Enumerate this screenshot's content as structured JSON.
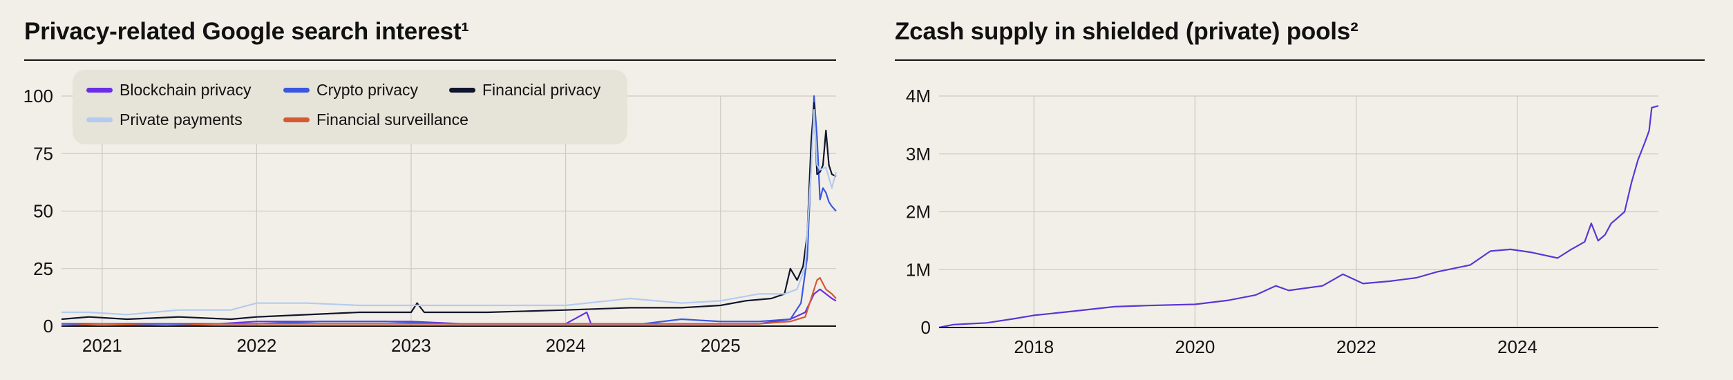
{
  "chart_data": [
    {
      "type": "line",
      "title": "Privacy-related Google search interest¹",
      "xlabel": "",
      "ylabel": "",
      "x_range": [
        "2020-09-27",
        "2025-10-01"
      ],
      "ylim": [
        0,
        100
      ],
      "yticks": [
        "0",
        "25",
        "50",
        "75",
        "100"
      ],
      "xticks": [
        "2021",
        "2022",
        "2023",
        "2024",
        "2025"
      ],
      "grid": true,
      "legend": "top-left",
      "series": [
        {
          "name": "Blockchain privacy",
          "color": "#6a2ee8",
          "points": [
            [
              "2020-09-27",
              1
            ],
            [
              "2021-01-01",
              1
            ],
            [
              "2021-06-01",
              1
            ],
            [
              "2021-10-01",
              1
            ],
            [
              "2022-01-01",
              2
            ],
            [
              "2022-04-01",
              2
            ],
            [
              "2022-09-01",
              2
            ],
            [
              "2023-01-01",
              2
            ],
            [
              "2023-05-01",
              1
            ],
            [
              "2023-09-01",
              1
            ],
            [
              "2024-01-01",
              1
            ],
            [
              "2024-02-20",
              6
            ],
            [
              "2024-03-01",
              1
            ],
            [
              "2024-08-01",
              1
            ],
            [
              "2025-01-01",
              1
            ],
            [
              "2025-04-01",
              1
            ],
            [
              "2025-06-15",
              3
            ],
            [
              "2025-07-20",
              6
            ],
            [
              "2025-08-10",
              14
            ],
            [
              "2025-08-24",
              16
            ],
            [
              "2025-09-07",
              14
            ],
            [
              "2025-09-21",
              12
            ],
            [
              "2025-10-01",
              11
            ]
          ]
        },
        {
          "name": "Crypto privacy",
          "color": "#3a57e0",
          "points": [
            [
              "2020-09-27",
              1
            ],
            [
              "2021-01-01",
              1
            ],
            [
              "2021-06-01",
              1
            ],
            [
              "2021-10-01",
              1
            ],
            [
              "2022-01-01",
              1
            ],
            [
              "2022-06-01",
              2
            ],
            [
              "2022-11-01",
              2
            ],
            [
              "2023-04-01",
              1
            ],
            [
              "2023-09-01",
              1
            ],
            [
              "2024-02-01",
              1
            ],
            [
              "2024-07-01",
              1
            ],
            [
              "2024-10-01",
              3
            ],
            [
              "2025-01-01",
              2
            ],
            [
              "2025-04-01",
              2
            ],
            [
              "2025-06-15",
              3
            ],
            [
              "2025-07-10",
              10
            ],
            [
              "2025-07-25",
              30
            ],
            [
              "2025-08-03",
              70
            ],
            [
              "2025-08-10",
              100
            ],
            [
              "2025-08-17",
              82
            ],
            [
              "2025-08-24",
              55
            ],
            [
              "2025-08-31",
              60
            ],
            [
              "2025-09-07",
              58
            ],
            [
              "2025-09-14",
              54
            ],
            [
              "2025-09-21",
              52
            ],
            [
              "2025-10-01",
              50
            ]
          ]
        },
        {
          "name": "Financial privacy",
          "color": "#10152e",
          "points": [
            [
              "2020-09-27",
              3
            ],
            [
              "2020-12-01",
              4
            ],
            [
              "2021-03-01",
              3
            ],
            [
              "2021-07-01",
              4
            ],
            [
              "2021-11-01",
              3
            ],
            [
              "2022-01-01",
              4
            ],
            [
              "2022-05-01",
              5
            ],
            [
              "2022-09-01",
              6
            ],
            [
              "2023-01-01",
              6
            ],
            [
              "2023-01-15",
              10
            ],
            [
              "2023-02-01",
              6
            ],
            [
              "2023-07-01",
              6
            ],
            [
              "2024-01-01",
              7
            ],
            [
              "2024-06-01",
              8
            ],
            [
              "2024-10-01",
              8
            ],
            [
              "2025-01-01",
              9
            ],
            [
              "2025-03-01",
              11
            ],
            [
              "2025-05-01",
              12
            ],
            [
              "2025-06-01",
              14
            ],
            [
              "2025-06-15",
              25
            ],
            [
              "2025-07-01",
              20
            ],
            [
              "2025-07-15",
              26
            ],
            [
              "2025-07-25",
              40
            ],
            [
              "2025-08-03",
              80
            ],
            [
              "2025-08-10",
              97
            ],
            [
              "2025-08-17",
              66
            ],
            [
              "2025-08-24",
              67
            ],
            [
              "2025-08-31",
              70
            ],
            [
              "2025-09-07",
              85
            ],
            [
              "2025-09-14",
              70
            ],
            [
              "2025-09-21",
              66
            ],
            [
              "2025-10-01",
              65
            ]
          ]
        },
        {
          "name": "Private payments",
          "color": "#b3cbf0",
          "points": [
            [
              "2020-09-27",
              6
            ],
            [
              "2020-12-01",
              6
            ],
            [
              "2021-03-01",
              5
            ],
            [
              "2021-07-01",
              7
            ],
            [
              "2021-11-01",
              7
            ],
            [
              "2022-01-01",
              10
            ],
            [
              "2022-05-01",
              10
            ],
            [
              "2022-09-01",
              9
            ],
            [
              "2023-01-01",
              9
            ],
            [
              "2023-06-01",
              9
            ],
            [
              "2024-01-01",
              9
            ],
            [
              "2024-06-01",
              12
            ],
            [
              "2024-10-01",
              10
            ],
            [
              "2025-01-01",
              11
            ],
            [
              "2025-04-01",
              14
            ],
            [
              "2025-06-01",
              14
            ],
            [
              "2025-07-01",
              16
            ],
            [
              "2025-07-20",
              26
            ],
            [
              "2025-08-03",
              68
            ],
            [
              "2025-08-10",
              94
            ],
            [
              "2025-08-17",
              70
            ],
            [
              "2025-08-24",
              68
            ],
            [
              "2025-09-07",
              69
            ],
            [
              "2025-09-21",
              60
            ],
            [
              "2025-10-01",
              67
            ]
          ]
        },
        {
          "name": "Financial surveillance",
          "color": "#d35a32",
          "points": [
            [
              "2020-09-27",
              0
            ],
            [
              "2021-01-01",
              1
            ],
            [
              "2021-06-01",
              0
            ],
            [
              "2021-10-01",
              1
            ],
            [
              "2022-01-01",
              1
            ],
            [
              "2022-06-01",
              1
            ],
            [
              "2022-11-01",
              1
            ],
            [
              "2023-04-01",
              1
            ],
            [
              "2023-09-01",
              1
            ],
            [
              "2024-02-01",
              1
            ],
            [
              "2024-07-01",
              1
            ],
            [
              "2024-12-01",
              1
            ],
            [
              "2025-04-01",
              1
            ],
            [
              "2025-06-15",
              2
            ],
            [
              "2025-07-20",
              4
            ],
            [
              "2025-08-03",
              12
            ],
            [
              "2025-08-17",
              20
            ],
            [
              "2025-08-24",
              21
            ],
            [
              "2025-09-07",
              16
            ],
            [
              "2025-09-21",
              14
            ],
            [
              "2025-10-01",
              12
            ]
          ]
        }
      ]
    },
    {
      "type": "line",
      "title": "Zcash supply in shielded (private) pools²",
      "xlabel": "",
      "ylabel": "",
      "x_range": [
        "2016-10-28",
        "2025-10-01"
      ],
      "ylim": [
        0,
        4000000
      ],
      "yticks": [
        "0",
        "1M",
        "2M",
        "3M",
        "4M"
      ],
      "xticks": [
        "2018",
        "2020",
        "2022",
        "2024"
      ],
      "grid": true,
      "series": [
        {
          "name": "",
          "color": "#5b35d5",
          "points": [
            [
              "2016-10-28",
              0
            ],
            [
              "2017-01-01",
              50000
            ],
            [
              "2017-06-01",
              80000
            ],
            [
              "2017-10-01",
              150000
            ],
            [
              "2018-01-01",
              210000
            ],
            [
              "2018-06-01",
              270000
            ],
            [
              "2019-01-01",
              360000
            ],
            [
              "2019-06-01",
              380000
            ],
            [
              "2020-01-01",
              400000
            ],
            [
              "2020-06-01",
              470000
            ],
            [
              "2020-10-01",
              560000
            ],
            [
              "2021-01-01",
              720000
            ],
            [
              "2021-03-01",
              640000
            ],
            [
              "2021-08-01",
              720000
            ],
            [
              "2021-11-01",
              920000
            ],
            [
              "2022-02-01",
              760000
            ],
            [
              "2022-06-01",
              800000
            ],
            [
              "2022-10-01",
              860000
            ],
            [
              "2023-01-01",
              960000
            ],
            [
              "2023-06-01",
              1080000
            ],
            [
              "2023-09-01",
              1320000
            ],
            [
              "2023-12-01",
              1350000
            ],
            [
              "2024-03-01",
              1300000
            ],
            [
              "2024-07-01",
              1200000
            ],
            [
              "2024-09-01",
              1350000
            ],
            [
              "2024-11-01",
              1480000
            ],
            [
              "2024-12-01",
              1800000
            ],
            [
              "2025-01-01",
              1500000
            ],
            [
              "2025-02-01",
              1600000
            ],
            [
              "2025-03-01",
              1800000
            ],
            [
              "2025-04-01",
              1900000
            ],
            [
              "2025-05-01",
              2000000
            ],
            [
              "2025-06-01",
              2500000
            ],
            [
              "2025-07-01",
              2900000
            ],
            [
              "2025-08-01",
              3200000
            ],
            [
              "2025-08-20",
              3400000
            ],
            [
              "2025-09-01",
              3800000
            ],
            [
              "2025-10-01",
              3830000
            ]
          ]
        }
      ]
    }
  ]
}
